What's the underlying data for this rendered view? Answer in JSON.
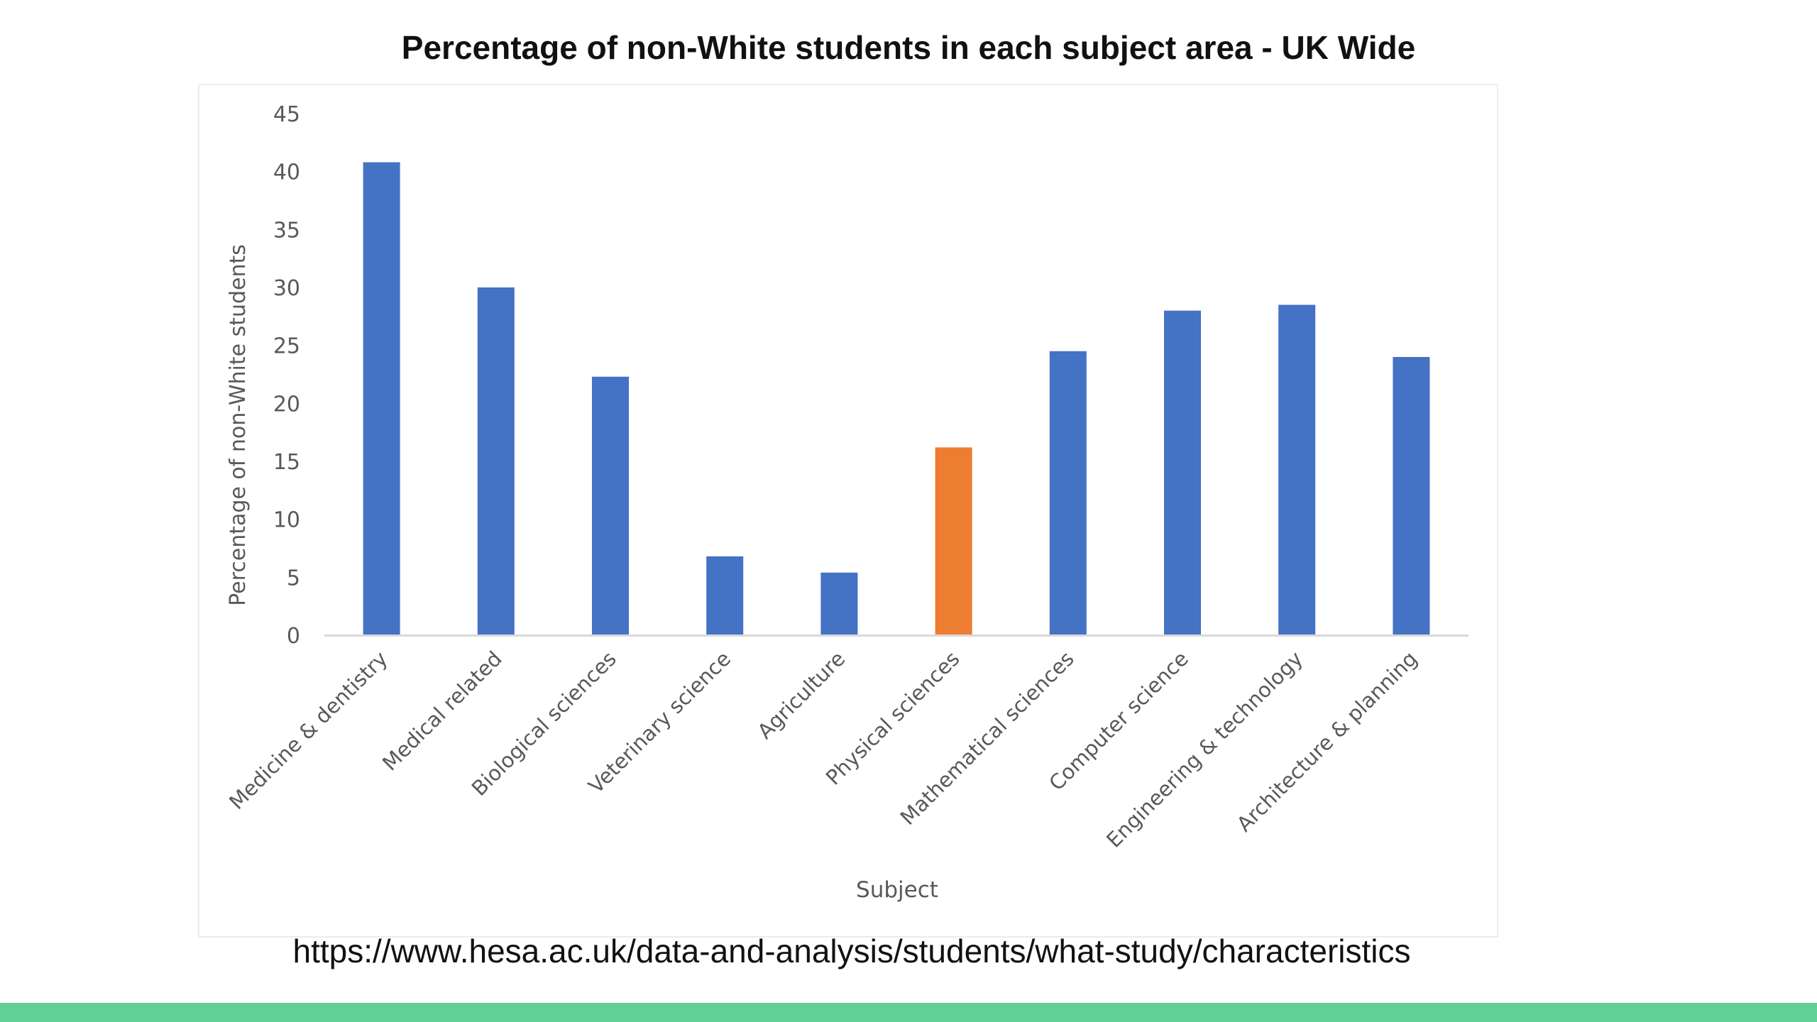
{
  "slide": {
    "title": "Percentage of non-White students in each subject area - UK Wide",
    "source": "https://www.hesa.ac.uk/data-and-analysis/students/what-study/characteristics"
  },
  "colors": {
    "bar_default": "#4472c4",
    "bar_highlight": "#ed7d31",
    "axis_text": "#595959",
    "axis_line": "#d9d9d9",
    "footer_bar": "#61d095"
  },
  "chart_data": {
    "type": "bar",
    "title": "",
    "xlabel": "Subject",
    "ylabel": "Percentage of non-White students",
    "ylim": [
      0,
      45
    ],
    "yticks": [
      0,
      5,
      10,
      15,
      20,
      25,
      30,
      35,
      40,
      45
    ],
    "grid": false,
    "legend": "none",
    "categories": [
      "Medicine & dentistry",
      "Medical related",
      "Biological sciences",
      "Veterinary science",
      "Agriculture",
      "Physical sciences",
      "Mathematical sciences",
      "Computer science",
      "Engineering & technology",
      "Architecture & planning"
    ],
    "values": [
      40.8,
      30.0,
      22.3,
      6.8,
      5.4,
      16.2,
      24.5,
      28.0,
      28.5,
      24.0
    ],
    "highlight": [
      "Physical sciences"
    ]
  }
}
